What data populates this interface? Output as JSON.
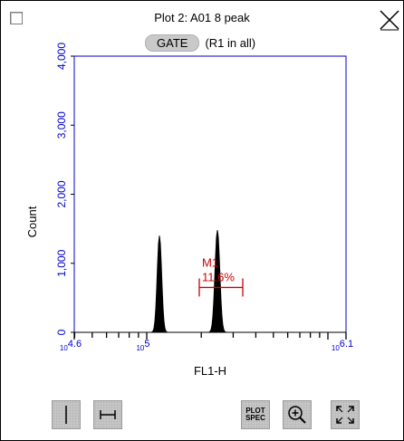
{
  "title": "Plot 2: A01 8 peak",
  "gate": {
    "button_label": "GATE",
    "text": "(R1 in all)"
  },
  "chart_data": {
    "type": "histogram",
    "xlabel": "FL1-H",
    "ylabel": "Count",
    "ylim": [
      0,
      4000
    ],
    "y_ticks": [
      "0",
      "1,000",
      "2,000",
      "3,000",
      "4,000"
    ],
    "y_tick_values": [
      0,
      1000,
      2000,
      3000,
      4000
    ],
    "xlim_log10": [
      4.6,
      6.1
    ],
    "x_tick_labels": [
      {
        "base": "10",
        "exp": "4.6",
        "value": 4.6
      },
      {
        "base": "10",
        "exp": "5",
        "value": 5.0
      },
      {
        "base": "10",
        "exp": "6.1",
        "value": 6.1
      }
    ],
    "peaks": [
      {
        "center_log10": 5.07,
        "height": 1400,
        "sigma_log10": 0.012
      },
      {
        "center_log10": 5.39,
        "height": 1480,
        "sigma_log10": 0.013
      }
    ],
    "marker": {
      "name": "M1",
      "percent": "11.6%",
      "x_start_log10": 5.29,
      "x_end_log10": 5.53,
      "y_level": 650
    },
    "colors": {
      "axis": "#0000cc",
      "fill": "#000000",
      "marker": "#cc0000"
    }
  },
  "toolbar": {
    "plot_spec_line1": "PLOT",
    "plot_spec_line2": "SPEC"
  },
  "icons": [
    "vertical-cursor-icon",
    "range-cursor-icon",
    "zoom-in-icon",
    "fit-to-window-icon",
    "close-icon"
  ]
}
